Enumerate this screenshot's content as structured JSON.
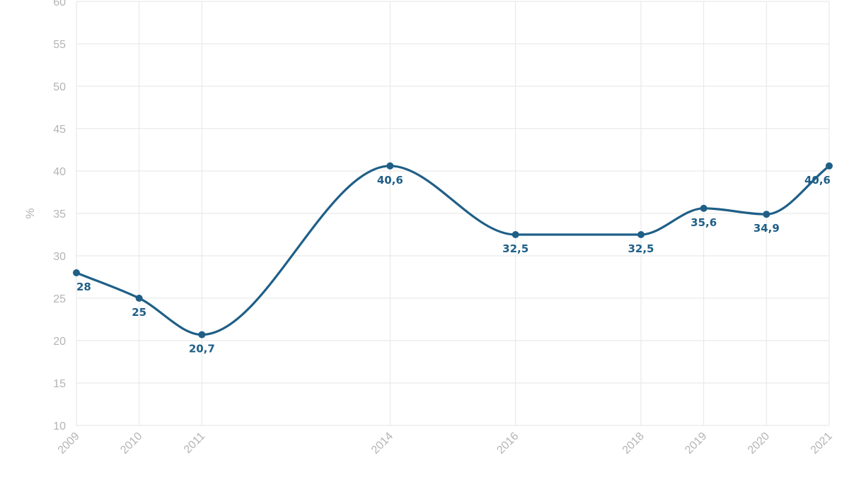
{
  "chart_data": {
    "type": "line",
    "smooth": true,
    "x": [
      2009,
      2010,
      2011,
      2014,
      2016,
      2018,
      2019,
      2020,
      2021
    ],
    "x_tick_labels": [
      "2009",
      "2010",
      "2011",
      "2014",
      "2016",
      "2018",
      "2019",
      "2020",
      "2021"
    ],
    "series": [
      {
        "values": [
          28,
          25,
          20.7,
          40.6,
          32.5,
          32.5,
          35.6,
          34.9,
          40.6
        ],
        "data_labels": [
          "28",
          "25",
          "20,7",
          "40,6",
          "32,5",
          "32,5",
          "35,6",
          "34,9",
          "40,6"
        ],
        "color": "#1f5f87"
      }
    ],
    "title": "",
    "xlabel": "",
    "ylabel": "%",
    "ylim": [
      10,
      60
    ],
    "y_ticks": [
      10,
      15,
      20,
      25,
      30,
      35,
      40,
      45,
      50,
      55,
      60
    ],
    "y_tick_labels": [
      "10",
      "15",
      "20",
      "25",
      "30",
      "35",
      "40",
      "45",
      "50",
      "55",
      "60"
    ],
    "grid": true,
    "legend": "none",
    "colors": {
      "line": "#1f5f87",
      "grid": "#e6e6e6",
      "axis_text": "#b4b4b4"
    }
  }
}
